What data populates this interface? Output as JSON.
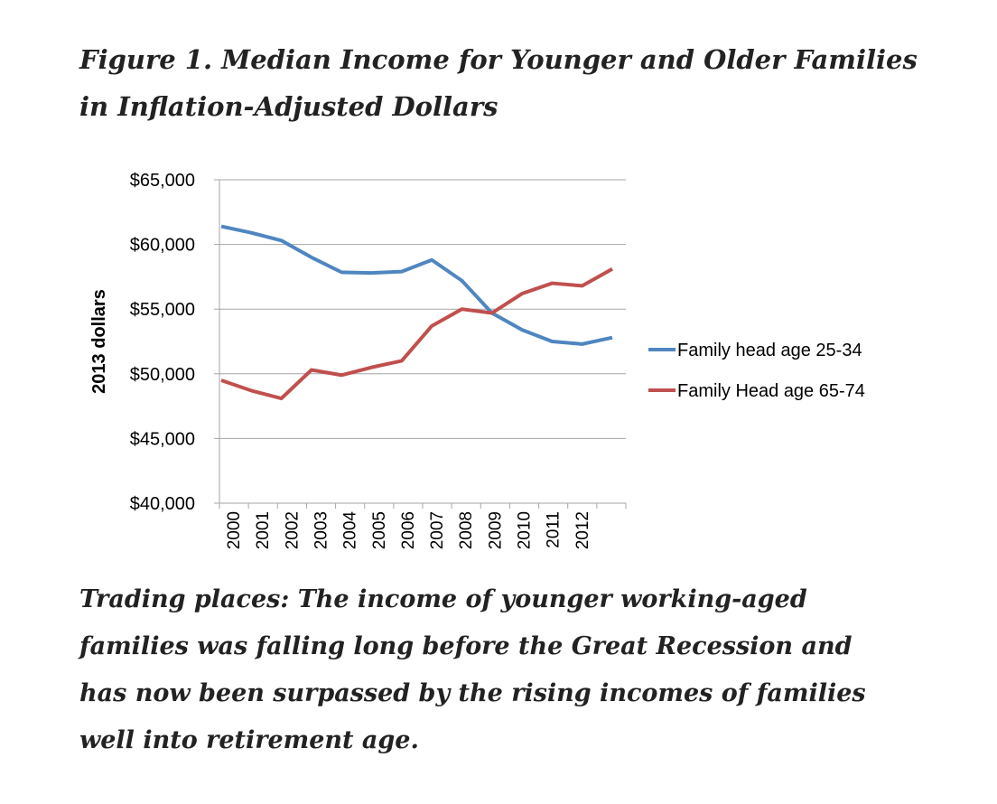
{
  "chart_data": {
    "type": "line",
    "title": [
      "Figure 1. Median Income for Younger and Older Families",
      "in Inflation-Adjusted Dollars"
    ],
    "caption": [
      "Trading places: The income of younger working-aged",
      "families was falling long before the Great Recession and",
      "has now been surpassed by the rising incomes of families",
      "well into retirement age."
    ],
    "y_label": "2013 dollars",
    "categories": [
      "2000",
      "2001",
      "2002",
      "2003",
      "2004",
      "2005",
      "2006",
      "2007",
      "2008",
      "2009",
      "2010",
      "2011",
      "2012",
      null
    ],
    "series": [
      {
        "name": "Family head age 25-34",
        "color": "#4f86c0",
        "values": [
          61400,
          60900,
          60300,
          59000,
          57850,
          57800,
          57900,
          58800,
          57200,
          54700,
          53400,
          52500,
          52300,
          52800
        ]
      },
      {
        "name": "Family Head age 65-74",
        "color": "#c0504d",
        "values": [
          49500,
          48700,
          48100,
          50300,
          49900,
          50500,
          51000,
          53700,
          55000,
          54700,
          56200,
          57000,
          56800,
          58100
        ]
      }
    ],
    "ylim": [
      40000,
      65000
    ],
    "yticks": [
      {
        "value": 40000,
        "label": "$40,000"
      },
      {
        "value": 45000,
        "label": "$45,000"
      },
      {
        "value": 50000,
        "label": "$50,000"
      },
      {
        "value": 55000,
        "label": "$55,000"
      },
      {
        "value": 60000,
        "label": "$60,000"
      },
      {
        "value": 65000,
        "label": "$65,000"
      }
    ],
    "grid": true,
    "legend": "right"
  }
}
